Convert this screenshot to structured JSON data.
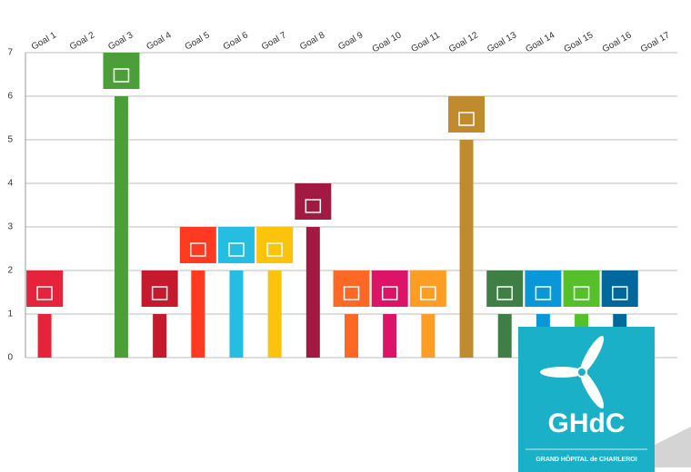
{
  "chart_data": {
    "type": "bar",
    "categories": [
      "Goal 1",
      "Goal 2",
      "Goal 3",
      "Goal 4",
      "Goal 5",
      "Goal 6",
      "Goal 7",
      "Goal 8",
      "Goal 9",
      "Goal 10",
      "Goal 11",
      "Goal 12",
      "Goal 13",
      "Goal 14",
      "Goal 15",
      "Goal 16",
      "Goal 17"
    ],
    "values": [
      1,
      0,
      6,
      1,
      2,
      2,
      2,
      3,
      1,
      1,
      1,
      5,
      1,
      1,
      1,
      1,
      0
    ],
    "colors": [
      "#e5243b",
      "#dda63a",
      "#4c9f38",
      "#c5192d",
      "#ff3a21",
      "#26bde2",
      "#fcc30b",
      "#a21942",
      "#fd6925",
      "#dd1367",
      "#fd9d24",
      "#bf8b2e",
      "#3f7e44",
      "#0a97d9",
      "#56c02b",
      "#00689d",
      "#19486a"
    ],
    "ylim": [
      0,
      7
    ],
    "yticks": [
      0,
      1,
      2,
      3,
      4,
      5,
      6,
      7
    ],
    "grid": true
  },
  "logo": {
    "name": "GHdC",
    "subtitle": "GRAND HÔPITAL de CHARLEROI"
  }
}
